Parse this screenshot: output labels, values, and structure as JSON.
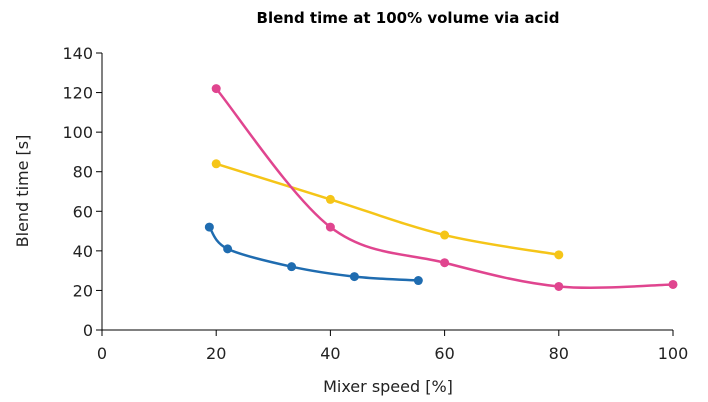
{
  "chart_data": {
    "type": "line",
    "title": "Blend time at 100% volume via acid",
    "xlabel": "Mixer speed [%]",
    "ylabel": "Blend time [s]",
    "xlim": [
      0,
      100
    ],
    "ylim": [
      0,
      140
    ],
    "xticks": [
      0,
      20,
      40,
      60,
      80,
      100
    ],
    "yticks": [
      0,
      20,
      40,
      60,
      80,
      100,
      120,
      140
    ],
    "x_tick_labels": [
      "0",
      "20",
      "40",
      "60",
      "80",
      "100"
    ],
    "y_tick_labels": [
      "0",
      "20",
      "40",
      "60",
      "80",
      "100",
      "120",
      "140"
    ],
    "grid": false,
    "legend": "none",
    "series": [
      {
        "color": "#1f6cb0",
        "x": [
          18.8,
          22,
          33.2,
          44.2,
          55.4
        ],
        "y": [
          52,
          41,
          32,
          27,
          25
        ]
      },
      {
        "color": "#f5c518",
        "x": [
          20,
          40,
          60,
          80
        ],
        "y": [
          84,
          66,
          48,
          38
        ]
      },
      {
        "color": "#e0458f",
        "x": [
          20,
          40,
          60,
          80,
          100
        ],
        "y": [
          122,
          52,
          34,
          22,
          23
        ]
      }
    ]
  }
}
